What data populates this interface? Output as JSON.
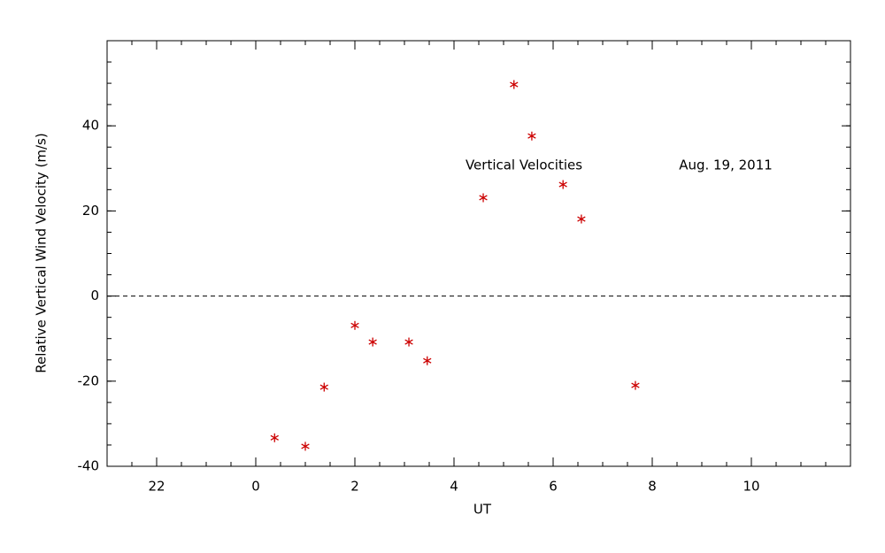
{
  "chart_data": {
    "type": "scatter",
    "xlabel": "UT",
    "ylabel": "Relative Vertical Wind Velocity (m/s)",
    "annotations": [
      "Vertical Velocities",
      "Aug. 19, 2011"
    ],
    "series": [
      {
        "color": "#cc0000",
        "x": [
          0.38,
          1.0,
          1.38,
          2.0,
          2.36,
          3.09,
          3.46,
          4.59,
          5.21,
          5.57,
          6.2,
          6.57,
          7.66
        ],
        "values": [
          -33.3,
          -35.3,
          -21.4,
          -6.9,
          -10.8,
          -10.8,
          -15.2,
          23.1,
          49.7,
          37.6,
          26.2,
          18.1,
          -21.0
        ]
      }
    ],
    "xlim": [
      -3,
      12
    ],
    "xticks": [
      {
        "value": -2,
        "label": "22"
      },
      0,
      2,
      4,
      6,
      8,
      10
    ],
    "ylim": [
      -40,
      60
    ],
    "yticks": [
      -40,
      -20,
      0,
      20,
      40
    ],
    "x_minor_per_major": 4,
    "y_minor_per_major": 4,
    "hline": 0
  }
}
